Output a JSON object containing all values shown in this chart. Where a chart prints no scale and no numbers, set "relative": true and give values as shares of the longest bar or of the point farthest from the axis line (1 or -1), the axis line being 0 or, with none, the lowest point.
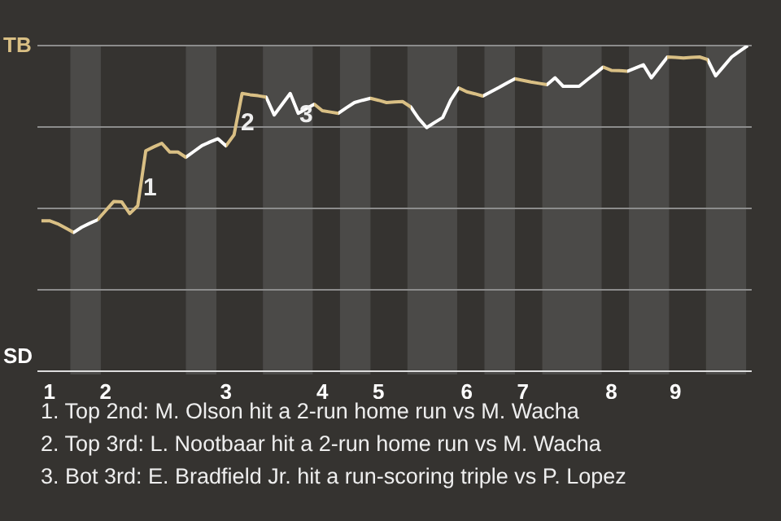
{
  "chart_data": {
    "type": "line",
    "relative": true,
    "categories": [
      null,
      "1",
      null,
      null,
      null,
      null,
      null,
      null,
      "2",
      null,
      null,
      null,
      null,
      null,
      null,
      null,
      null,
      null,
      null,
      null,
      null,
      null,
      null,
      "3",
      null,
      null,
      null,
      null,
      null,
      null,
      null,
      null,
      null,
      null,
      null,
      "4",
      null,
      null,
      null,
      null,
      null,
      null,
      "5",
      null,
      null,
      null,
      null,
      null,
      null,
      null,
      null,
      null,
      null,
      "6",
      null,
      null,
      null,
      null,
      null,
      null,
      "7",
      null,
      null,
      null,
      null,
      null,
      null,
      null,
      null,
      null,
      null,
      "8",
      null,
      null,
      null,
      null,
      null,
      null,
      null,
      "9",
      null,
      null,
      null,
      null,
      null,
      null,
      null,
      null,
      null
    ],
    "grid": "y",
    "legend": false,
    "marker": "none",
    "line_style": "solid",
    "series": [
      {
        "color": "#ffffff",
        "values": [
          0.462,
          0.462,
          0.453,
          0.44,
          0.426,
          0.442,
          0.454,
          0.465,
          0.493,
          0.521,
          0.52,
          0.484,
          0.508,
          0.677,
          0.689,
          0.7,
          0.673,
          0.673,
          0.657,
          0.675,
          0.693,
          0.704,
          0.714,
          0.692,
          0.726,
          0.853,
          0.849,
          0.846,
          0.842,
          0.787,
          0.82,
          0.853,
          0.792,
          0.806,
          0.82,
          0.8,
          0.796,
          0.792,
          0.809,
          0.825,
          0.832,
          0.838,
          0.832,
          0.825,
          0.827,
          0.828,
          0.812,
          0.776,
          0.748,
          0.764,
          0.779,
          0.833,
          0.87,
          0.858,
          0.852,
          0.845,
          0.858,
          0.871,
          0.885,
          0.898,
          0.893,
          0.888,
          0.884,
          0.88,
          0.901,
          0.875,
          0.875,
          0.875,
          0.895,
          0.914,
          0.934,
          0.924,
          0.923,
          0.921,
          0.931,
          0.941,
          0.901,
          0.933,
          0.965,
          0.964,
          0.962,
          0.964,
          0.965,
          0.957,
          0.907,
          0.936,
          0.965,
          0.983,
          1
        ],
        "colors": [
          "#d9bf84",
          "#d9bf84",
          "#d9bf84",
          "#d9bf84",
          null,
          null,
          null,
          "#d9bf84",
          "#d9bf84",
          "#d9bf84",
          "#d9bf84",
          "#d9bf84",
          "#d9bf84",
          "#d9bf84",
          "#d9bf84",
          "#d9bf84",
          "#d9bf84",
          "#d9bf84",
          null,
          null,
          null,
          null,
          null,
          "#d9bf84",
          "#d9bf84",
          "#d9bf84",
          "#d9bf84",
          "#d9bf84",
          null,
          null,
          null,
          null,
          null,
          null,
          "#d9bf84",
          "#d9bf84",
          "#d9bf84",
          null,
          null,
          null,
          null,
          "#d9bf84",
          "#d9bf84",
          "#d9bf84",
          "#d9bf84",
          "#d9bf84",
          null,
          null,
          null,
          null,
          null,
          null,
          "#d9bf84",
          "#d9bf84",
          "#d9bf84",
          null,
          null,
          null,
          null,
          "#d9bf84",
          "#d9bf84",
          "#d9bf84",
          "#d9bf84",
          null,
          null,
          null,
          null,
          null,
          null,
          null,
          "#d9bf84",
          "#d9bf84",
          "#d9bf84",
          null,
          null,
          null,
          null,
          null,
          "#d9bf84",
          "#d9bf84",
          "#d9bf84",
          "#d9bf84",
          "#d9bf84",
          null,
          null,
          null,
          null,
          null,
          null
        ]
      }
    ],
    "annotations": [
      "TB",
      "SD",
      "1",
      "2",
      "3",
      "1. Top 2nd: M. Olson hit a 2-run home run vs M. Wacha",
      "2. Top 3rd: L. Nootbaar hit a 2-run home run vs M. Wacha",
      "3. Bot 3rd: E. Bradfield Jr. hit a run-scoring triple vs P. Lopez"
    ]
  }
}
